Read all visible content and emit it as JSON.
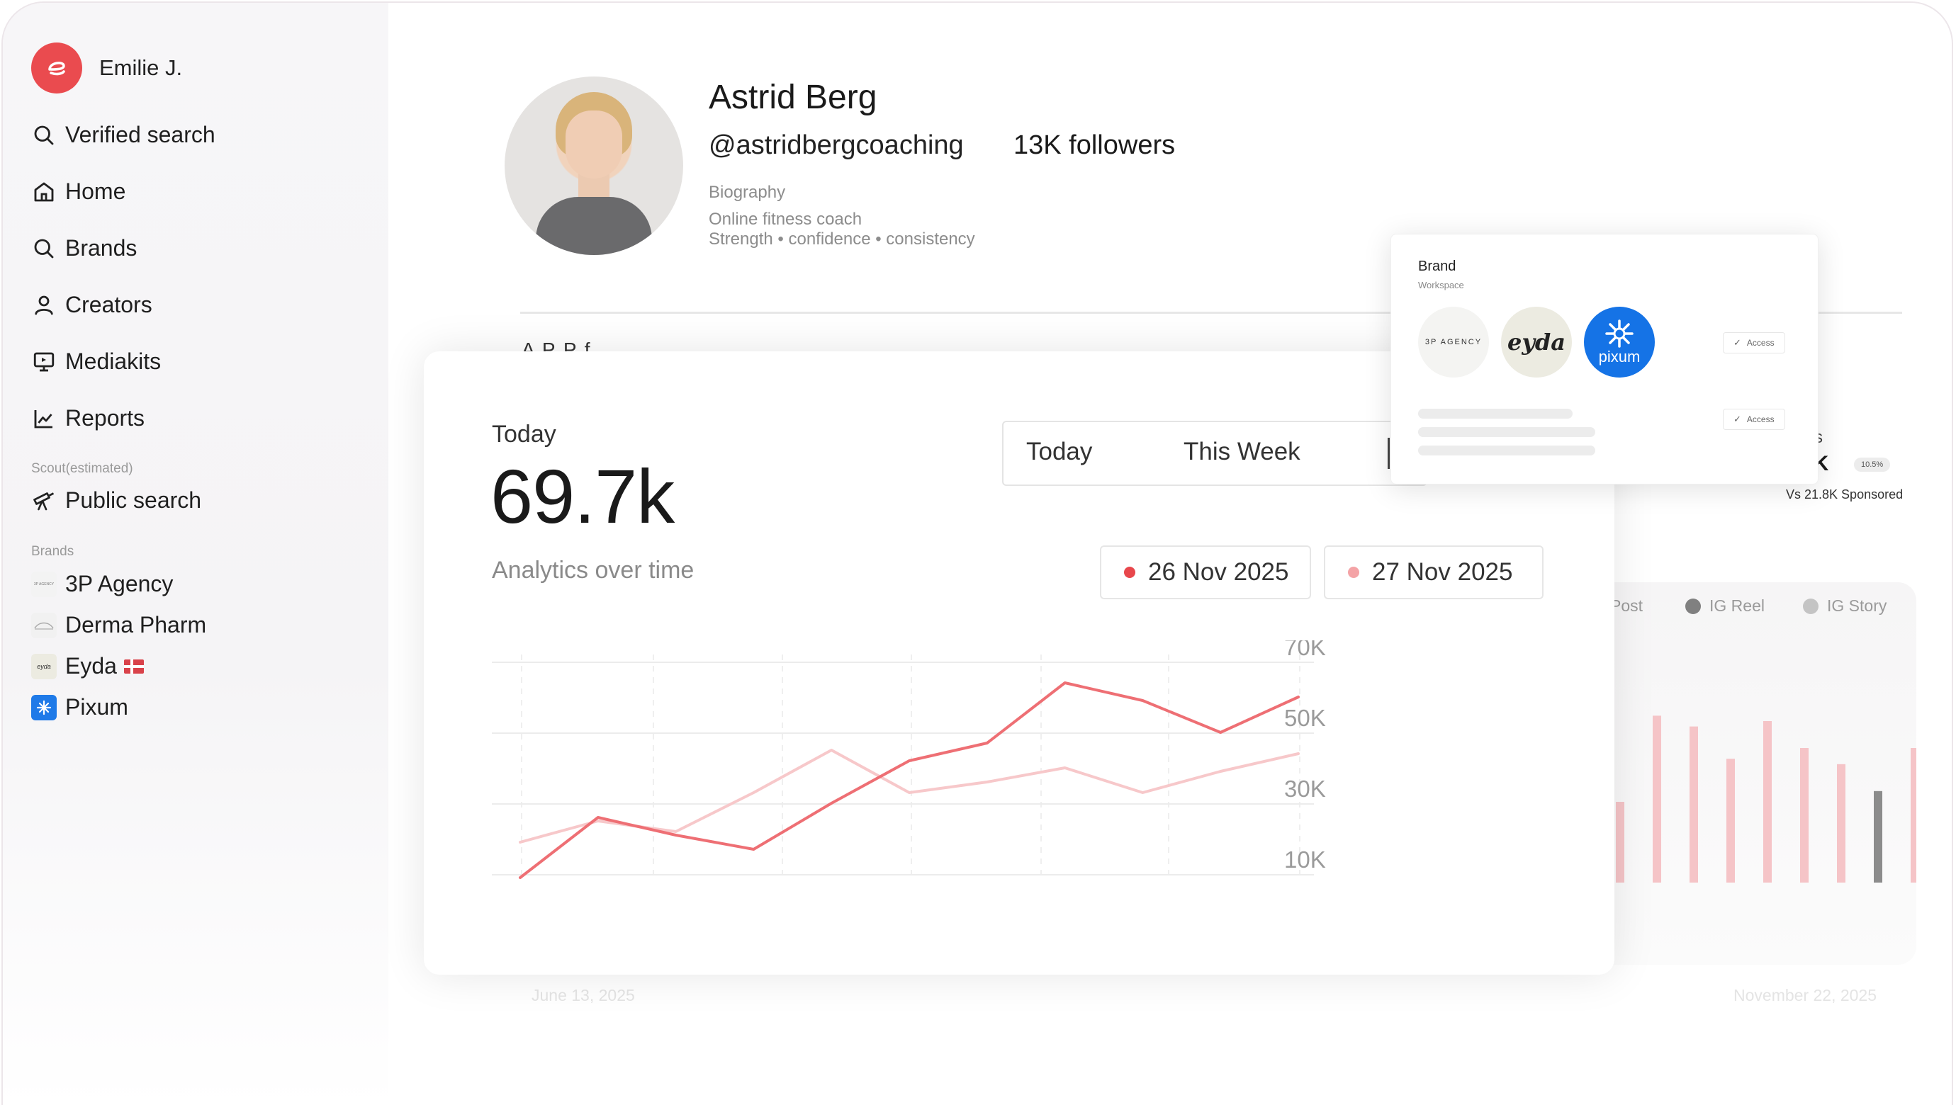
{
  "sidebar": {
    "user_name": "Emilie J.",
    "nav": [
      {
        "label": "Verified search",
        "icon": "search-icon"
      },
      {
        "label": "Home",
        "icon": "home-icon"
      },
      {
        "label": "Brands",
        "icon": "search-icon"
      },
      {
        "label": "Creators",
        "icon": "user-icon"
      },
      {
        "label": "Mediakits",
        "icon": "presentation-icon"
      },
      {
        "label": "Reports",
        "icon": "line-chart-icon"
      }
    ],
    "scout_label": "Scout(estimated)",
    "public_search": {
      "label": "Public search",
      "icon": "telescope-icon"
    },
    "brands_label": "Brands",
    "brands": [
      {
        "label": "3P Agency",
        "thumb": "3P AGENCY"
      },
      {
        "label": "Derma Pharm",
        "thumb": ""
      },
      {
        "label": "Eyda",
        "thumb": "eyda",
        "flag": "danish-flag-icon"
      },
      {
        "label": "Pixum",
        "thumb": "pixum"
      }
    ]
  },
  "profile": {
    "name": "Astrid Berg",
    "handle": "@astridbergcoaching",
    "followers": "13K followers",
    "bio_label": "Biography",
    "bio_lines": [
      "Online fitness coach",
      "Strength • confidence • consistency"
    ],
    "partial_heading": "A   P   P  f"
  },
  "background_stats": {
    "partial_label": "s",
    "value": "1K",
    "chip": "10.5%",
    "vs": "Vs 21.8K Sponsored",
    "legend": [
      {
        "label": "Post",
        "color": "#f3c9cc"
      },
      {
        "label": "IG Reel",
        "color": "#808080"
      },
      {
        "label": "IG Story",
        "color": "#bdbdbd"
      }
    ],
    "bars": [
      0.3,
      0.62,
      0.58,
      0.46,
      0.6,
      0.5,
      0.44,
      0.34,
      0.5
    ],
    "date_start": "June 13, 2025",
    "date_end": "November 22, 2025"
  },
  "analytics": {
    "period_label": "Today",
    "value": "69.7k",
    "subtitle": "Analytics over time",
    "tabs": [
      "Today",
      "This Week"
    ],
    "dates": [
      {
        "label": "26 Nov 2025",
        "color": "#e8474c"
      },
      {
        "label": "27 Nov 2025",
        "color": "#f4a3a6"
      }
    ]
  },
  "chart_data": {
    "type": "line",
    "ylim": [
      10000,
      70000
    ],
    "y_ticks": [
      "70K",
      "50K",
      "30K",
      "10K"
    ],
    "series": [
      {
        "color": "#ee6f74",
        "values": [
          9000,
          26000,
          21000,
          17000,
          30000,
          42000,
          47000,
          64000,
          59000,
          50000,
          60000
        ]
      },
      {
        "color": "#f7c8ca",
        "values": [
          19000,
          25000,
          22000,
          33000,
          45000,
          33000,
          36000,
          40000,
          33000,
          39000,
          44000
        ]
      }
    ]
  },
  "brand_popup": {
    "title": "Brand",
    "subtitle": "Workspace",
    "brands": [
      {
        "name": "3P AGENCY",
        "bg": "#f4f4f2",
        "color": "#333"
      },
      {
        "name": "eyda",
        "bg": "#ecebe1",
        "color": "#222"
      },
      {
        "name": "pixum",
        "bg": "#1573e6",
        "color": "#ffffff"
      }
    ],
    "access_label": "Access"
  }
}
